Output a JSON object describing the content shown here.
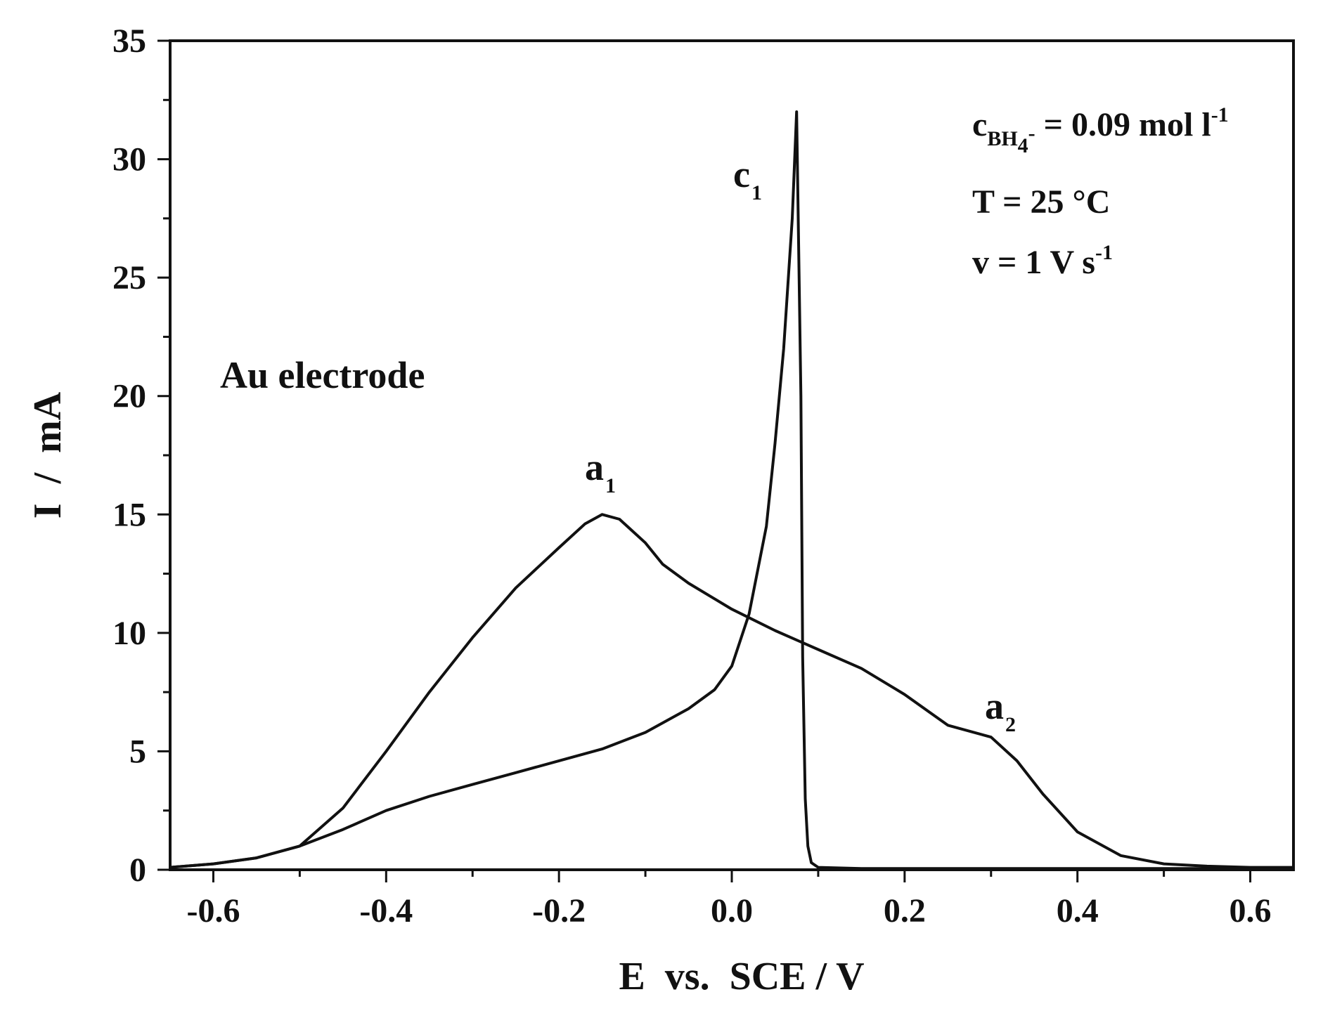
{
  "chart_data": {
    "type": "line",
    "xlabel": "E  vs.  SCE / V",
    "ylabel": "I  /  mA",
    "xlim": [
      -0.65,
      0.65
    ],
    "ylim": [
      0,
      35
    ],
    "x_ticks": [
      -0.6,
      -0.4,
      -0.2,
      0.0,
      0.2,
      0.4,
      0.6
    ],
    "x_tick_labels": [
      "-0.6",
      "-0.4",
      "-0.2",
      "0.0",
      "0.2",
      "0.4",
      "0.6"
    ],
    "y_ticks": [
      0,
      5,
      10,
      15,
      20,
      25,
      30,
      35
    ],
    "y_tick_labels": [
      "0",
      "5",
      "10",
      "15",
      "20",
      "25",
      "30",
      "35"
    ],
    "grid": false,
    "color": "#111111",
    "annotations": {
      "electrode": "Au electrode",
      "peak_a1": {
        "base": "a",
        "sub": "1"
      },
      "peak_a2": {
        "base": "a",
        "sub": "2"
      },
      "peak_c1": {
        "base": "c",
        "sub": "1"
      },
      "conditions": {
        "concentration": {
          "base": "c",
          "sub": "BH",
          "sub2": "4",
          "sup2": "-",
          "rest": " = 0.09 mol l",
          "sup": "-1"
        },
        "temperature": "T = 25 °C",
        "scan_rate": {
          "base": "v = 1 V s",
          "sup": "-1"
        }
      }
    },
    "series": [
      {
        "values": [
          [
            -0.65,
            0.1
          ],
          [
            -0.6,
            0.25
          ],
          [
            -0.55,
            0.5
          ],
          [
            -0.5,
            1.0
          ],
          [
            -0.45,
            2.6
          ],
          [
            -0.4,
            5.0
          ],
          [
            -0.35,
            7.5
          ],
          [
            -0.3,
            9.8
          ],
          [
            -0.25,
            11.9
          ],
          [
            -0.2,
            13.6
          ],
          [
            -0.17,
            14.6
          ],
          [
            -0.15,
            15.0
          ],
          [
            -0.13,
            14.8
          ],
          [
            -0.1,
            13.8
          ],
          [
            -0.08,
            12.9
          ],
          [
            -0.05,
            12.1
          ],
          [
            0.0,
            11.0
          ],
          [
            0.05,
            10.1
          ],
          [
            0.1,
            9.3
          ],
          [
            0.15,
            8.5
          ],
          [
            0.2,
            7.4
          ],
          [
            0.25,
            6.1
          ],
          [
            0.3,
            5.6
          ],
          [
            0.33,
            4.6
          ],
          [
            0.36,
            3.2
          ],
          [
            0.4,
            1.6
          ],
          [
            0.45,
            0.6
          ],
          [
            0.5,
            0.25
          ],
          [
            0.55,
            0.15
          ],
          [
            0.6,
            0.1
          ],
          [
            0.65,
            0.1
          ]
        ]
      },
      {
        "values": [
          [
            -0.65,
            0.1
          ],
          [
            -0.6,
            0.25
          ],
          [
            -0.55,
            0.5
          ],
          [
            -0.5,
            1.0
          ],
          [
            -0.45,
            1.7
          ],
          [
            -0.4,
            2.5
          ],
          [
            -0.35,
            3.1
          ],
          [
            -0.3,
            3.6
          ],
          [
            -0.25,
            4.1
          ],
          [
            -0.2,
            4.6
          ],
          [
            -0.15,
            5.1
          ],
          [
            -0.1,
            5.8
          ],
          [
            -0.05,
            6.8
          ],
          [
            -0.02,
            7.6
          ],
          [
            0.0,
            8.6
          ],
          [
            0.02,
            10.8
          ],
          [
            0.04,
            14.5
          ],
          [
            0.05,
            18.0
          ],
          [
            0.06,
            22.0
          ],
          [
            0.07,
            27.5
          ],
          [
            0.075,
            32.0
          ],
          [
            0.08,
            20.0
          ],
          [
            0.082,
            9.0
          ],
          [
            0.085,
            3.0
          ],
          [
            0.088,
            1.0
          ],
          [
            0.092,
            0.3
          ],
          [
            0.1,
            0.1
          ],
          [
            0.15,
            0.05
          ],
          [
            0.3,
            0.05
          ],
          [
            0.5,
            0.05
          ],
          [
            0.65,
            0.05
          ]
        ]
      }
    ]
  }
}
